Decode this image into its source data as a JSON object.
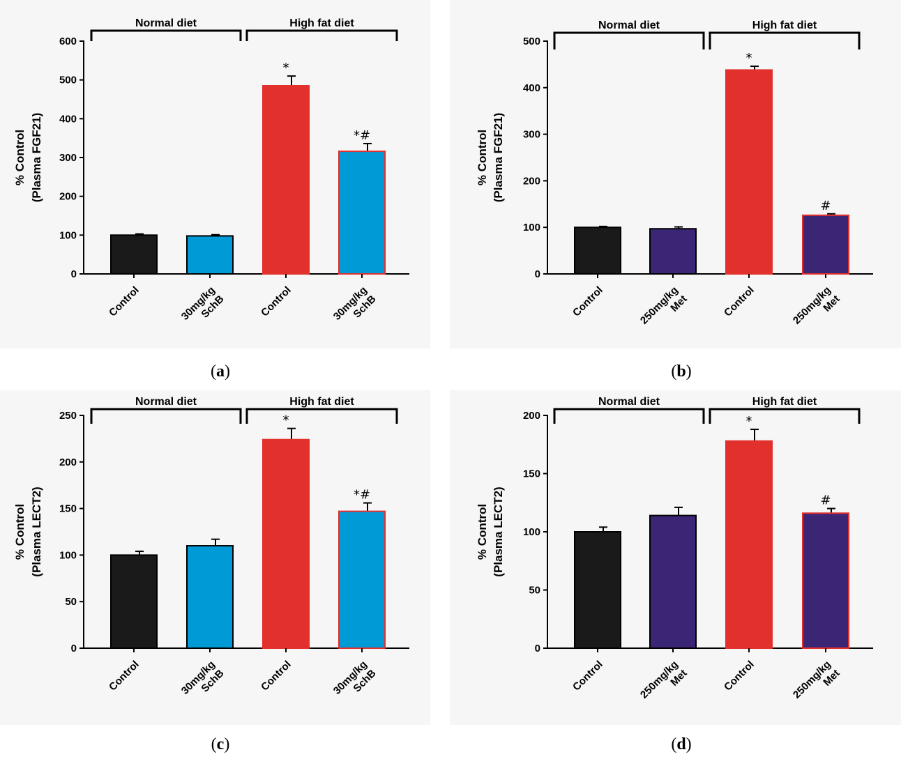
{
  "chart_data": [
    {
      "panel": "a",
      "caption": "(a)",
      "type": "bar",
      "ylabel": [
        "% Control",
        "(Plasma FGF21)"
      ],
      "ylim": [
        0,
        600
      ],
      "yticks": [
        0,
        100,
        200,
        300,
        400,
        500,
        600
      ],
      "groups": [
        {
          "label": "Normal diet",
          "bars": [
            0,
            1
          ]
        },
        {
          "label": "High fat diet",
          "bars": [
            2,
            3
          ]
        }
      ],
      "bars": [
        {
          "label": [
            "Control"
          ],
          "value": 100,
          "error": 3,
          "color": "#1a1a1a",
          "edge": "#000000",
          "sig": ""
        },
        {
          "label": [
            "30mg/kg",
            "SchB"
          ],
          "value": 98,
          "error": 3,
          "color": "#009ad6",
          "edge": "#000000",
          "sig": ""
        },
        {
          "label": [
            "Control"
          ],
          "value": 485,
          "error": 25,
          "color": "#e2302d",
          "edge": "#e2302d",
          "sig": "*"
        },
        {
          "label": [
            "30mg/kg",
            "SchB"
          ],
          "value": 316,
          "error": 20,
          "color": "#009ad6",
          "edge": "#e2302d",
          "sig": "*#"
        }
      ]
    },
    {
      "panel": "b",
      "caption": "(b)",
      "type": "bar",
      "ylabel": [
        "% Control",
        "(Plasma FGF21)"
      ],
      "ylim": [
        0,
        500
      ],
      "yticks": [
        0,
        100,
        200,
        300,
        400,
        500
      ],
      "groups": [
        {
          "label": "Normal diet",
          "bars": [
            0,
            1
          ]
        },
        {
          "label": "High fat diet",
          "bars": [
            2,
            3
          ]
        }
      ],
      "bars": [
        {
          "label": [
            "Control"
          ],
          "value": 100,
          "error": 2,
          "color": "#1a1a1a",
          "edge": "#000000",
          "sig": ""
        },
        {
          "label": [
            "250mg/kg",
            "Met"
          ],
          "value": 97,
          "error": 4,
          "color": "#3b2575",
          "edge": "#000000",
          "sig": ""
        },
        {
          "label": [
            "Control"
          ],
          "value": 438,
          "error": 8,
          "color": "#e2302d",
          "edge": "#e2302d",
          "sig": "*"
        },
        {
          "label": [
            "250mg/kg",
            "Met"
          ],
          "value": 126,
          "error": 3,
          "color": "#3b2575",
          "edge": "#e2302d",
          "sig": "#"
        }
      ]
    },
    {
      "panel": "c",
      "caption": "(c)",
      "type": "bar",
      "ylabel": [
        "% Control",
        "(Plasma LECT2)"
      ],
      "ylim": [
        0,
        250
      ],
      "yticks": [
        0,
        50,
        100,
        150,
        200,
        250
      ],
      "groups": [
        {
          "label": "Normal diet",
          "bars": [
            0,
            1
          ]
        },
        {
          "label": "High fat diet",
          "bars": [
            2,
            3
          ]
        }
      ],
      "bars": [
        {
          "label": [
            "Control"
          ],
          "value": 100,
          "error": 4,
          "color": "#1a1a1a",
          "edge": "#000000",
          "sig": ""
        },
        {
          "label": [
            "30mg/kg",
            "SchB"
          ],
          "value": 110,
          "error": 7,
          "color": "#009ad6",
          "edge": "#000000",
          "sig": ""
        },
        {
          "label": [
            "Control"
          ],
          "value": 224,
          "error": 12,
          "color": "#e2302d",
          "edge": "#e2302d",
          "sig": "*"
        },
        {
          "label": [
            "30mg/kg",
            "SchB"
          ],
          "value": 147,
          "error": 9,
          "color": "#009ad6",
          "edge": "#e2302d",
          "sig": "*#"
        }
      ]
    },
    {
      "panel": "d",
      "caption": "(d)",
      "type": "bar",
      "ylabel": [
        "% Control",
        "(Plasma LECT2)"
      ],
      "ylim": [
        0,
        200
      ],
      "yticks": [
        0,
        50,
        100,
        150,
        200
      ],
      "groups": [
        {
          "label": "Normal diet",
          "bars": [
            0,
            1
          ]
        },
        {
          "label": "High fat diet",
          "bars": [
            2,
            3
          ]
        }
      ],
      "bars": [
        {
          "label": [
            "Control"
          ],
          "value": 100,
          "error": 4,
          "color": "#1a1a1a",
          "edge": "#000000",
          "sig": ""
        },
        {
          "label": [
            "250mg/kg",
            "Met"
          ],
          "value": 114,
          "error": 7,
          "color": "#3b2575",
          "edge": "#000000",
          "sig": ""
        },
        {
          "label": [
            "Control"
          ],
          "value": 178,
          "error": 10,
          "color": "#e2302d",
          "edge": "#e2302d",
          "sig": "*"
        },
        {
          "label": [
            "250mg/kg",
            "Met"
          ],
          "value": 116,
          "error": 4,
          "color": "#3b2575",
          "edge": "#e2302d",
          "sig": "#"
        }
      ]
    }
  ]
}
